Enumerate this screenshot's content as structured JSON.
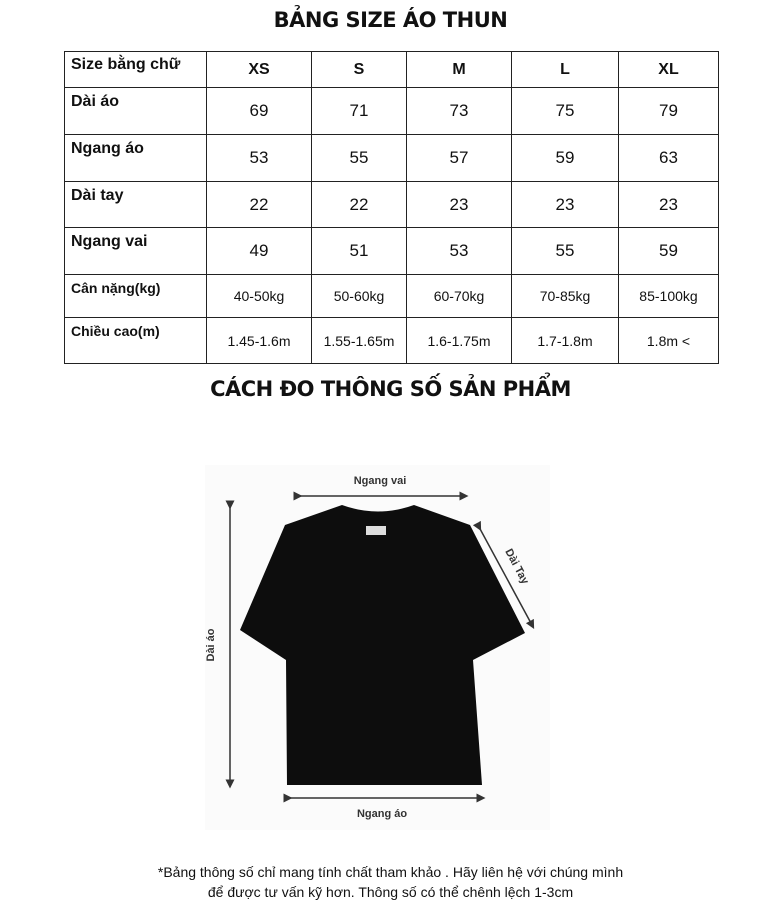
{
  "title": "BẢNG SIZE ÁO THUN",
  "table": {
    "header": [
      "Size bằng chữ",
      "XS",
      "S",
      "M",
      "L",
      "XL"
    ],
    "rows": [
      {
        "label": "Dài áo",
        "values": [
          "69",
          "71",
          "73",
          "75",
          "79"
        ]
      },
      {
        "label": "Ngang áo",
        "values": [
          "53",
          "55",
          "57",
          "59",
          "63"
        ]
      },
      {
        "label": "Dài tay",
        "values": [
          "22",
          "22",
          "23",
          "23",
          "23"
        ]
      },
      {
        "label": "Ngang vai",
        "values": [
          "49",
          "51",
          "53",
          "55",
          "59"
        ]
      },
      {
        "label": "Cân nặng(kg)",
        "values": [
          "40-50kg",
          "50-60kg",
          "60-70kg",
          "70-85kg",
          "85-100kg"
        ]
      },
      {
        "label": "Chiều cao(m)",
        "values": [
          "1.45-1.6m",
          "1.55-1.65m",
          "1.6-1.75m",
          "1.7-1.8m",
          "1.8m <"
        ]
      }
    ]
  },
  "measure_title": "CÁCH ĐO THÔNG SỐ SẢN PHẨM",
  "diagram": {
    "shoulder": "Ngang vai",
    "sleeve": "Dài Tay",
    "length": "Dài áo",
    "width": "Ngang áo",
    "shirt_color": "#0d0d0d"
  },
  "footer": {
    "line1": "*Bảng thông số chỉ mang tính chất tham khảo . Hãy liên hệ với chúng mình",
    "line2": "để được tư vấn kỹ hơn. Thông số có thể chênh lệch 1-3cm"
  }
}
